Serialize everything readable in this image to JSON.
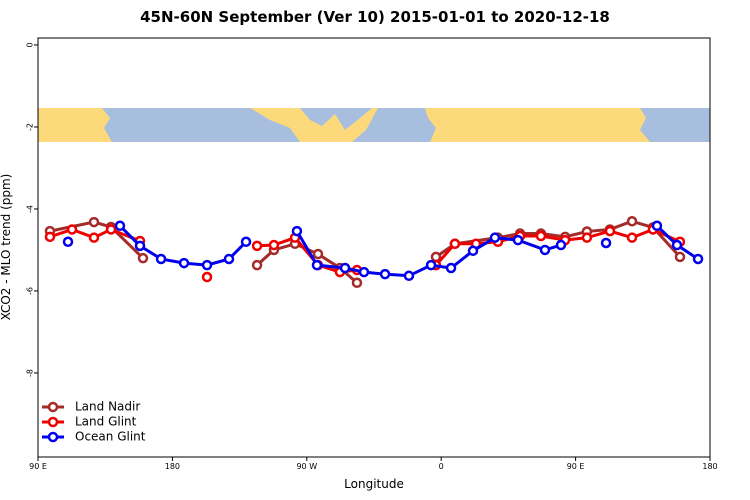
{
  "chart_data": {
    "type": "line",
    "title": "45N-60N September (Ver 10)   2015-01-01 to 2020-12-18",
    "x_label": "Longitude",
    "y_label": "XCO2 - MLO trend (ppm)",
    "xlim": [
      90,
      540
    ],
    "xticks": [
      {
        "value": 90,
        "label": "90 E"
      },
      {
        "value": 180,
        "label": "180"
      },
      {
        "value": 270,
        "label": "90 W"
      },
      {
        "value": 360,
        "label": "0"
      },
      {
        "value": 450,
        "label": "90 E"
      },
      {
        "value": 540,
        "label": "180"
      }
    ],
    "ylim": [
      -10.05,
      0.17
    ],
    "yticks": [
      0,
      -2,
      -4,
      -6,
      -8
    ],
    "legend": "bottom-left",
    "series": [
      {
        "name": "Land Nadir",
        "color": "#a52a2a",
        "x": [
          98,
          127.5,
          138.9,
          160.3,
          null,
          236.7,
          248,
          262.1,
          277.5,
          292.2,
          303.6,
          null,
          356.5,
          369.2,
          398,
          412.8,
          426.8,
          443,
          457.6,
          473,
          487.8,
          501.8,
          519.9
        ],
        "values": [
          -4.54,
          -4.32,
          -4.44,
          -5.2,
          null,
          -5.37,
          -5.0,
          -4.85,
          -5.1,
          -5.44,
          -5.8,
          null,
          -5.17,
          -4.85,
          -4.7,
          -4.6,
          -4.6,
          -4.68,
          -4.55,
          -4.5,
          -4.3,
          -4.45,
          -5.17
        ]
      },
      {
        "name": "Land Glint",
        "color": "#ee0000",
        "x": [
          98,
          112.8,
          127.5,
          138.9,
          158.3,
          null,
          203.2,
          null,
          236.7,
          248,
          262.1,
          277.5,
          292.2,
          303.6,
          null,
          356.5,
          369.2,
          383.3,
          398,
          412.8,
          426.8,
          443,
          457.6,
          473,
          487.8,
          501.8,
          519.9
        ],
        "values": [
          -4.68,
          -4.5,
          -4.7,
          -4.5,
          -4.78,
          null,
          -5.66,
          null,
          -4.9,
          -4.88,
          -4.7,
          -5.37,
          -5.54,
          -5.49,
          null,
          -5.37,
          -4.85,
          -4.85,
          -4.8,
          -4.66,
          -4.66,
          -4.76,
          -4.7,
          -4.54,
          -4.7,
          -4.5,
          -4.8
        ]
      },
      {
        "name": "Ocean Glint",
        "color": "#0000ee",
        "x": [
          110.1,
          null,
          144.9,
          158.3,
          172.4,
          187.8,
          203.2,
          217.9,
          229.3,
          null,
          263.4,
          276.8,
          295.6,
          308.3,
          322.4,
          338.4,
          353.2,
          366.6,
          381.3,
          396,
          411.4,
          429.5,
          440.2,
          null,
          470.4,
          null,
          504.5,
          517.9,
          532
        ],
        "values": [
          -4.8,
          null,
          -4.41,
          -4.9,
          -5.22,
          -5.32,
          -5.37,
          -5.22,
          -4.8,
          null,
          -4.54,
          -5.37,
          -5.44,
          -5.54,
          -5.59,
          -5.63,
          -5.37,
          -5.44,
          -5.02,
          -4.7,
          -4.76,
          -5.0,
          -4.88,
          null,
          -4.83,
          null,
          -4.41,
          -4.88,
          -5.22
        ]
      }
    ]
  }
}
